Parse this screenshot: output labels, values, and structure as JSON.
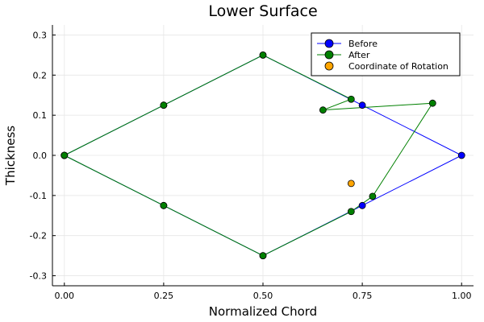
{
  "chart_data": {
    "type": "line",
    "title": "Lower Surface",
    "xlabel": "Normalized Chord",
    "ylabel": "Thickness",
    "xlim": [
      -0.03,
      1.03
    ],
    "ylim": [
      -0.325,
      0.325
    ],
    "xticks": [
      0.0,
      0.25,
      0.5,
      0.75,
      1.0
    ],
    "xtick_labels": [
      "0.00",
      "0.25",
      "0.50",
      "0.75",
      "1.00"
    ],
    "yticks": [
      -0.3,
      -0.2,
      -0.1,
      0.0,
      0.1,
      0.2,
      0.3
    ],
    "ytick_labels": [
      "-0.3",
      "-0.2",
      "-0.1",
      "0.0",
      "0.1",
      "0.2",
      "0.3"
    ],
    "grid": true,
    "legend_position": "top-right",
    "series": [
      {
        "name": "Before",
        "color": "#0000ff",
        "kind": "line+markers",
        "x": [
          0.0,
          0.25,
          0.5,
          0.75,
          1.0,
          0.75,
          0.5,
          0.25,
          0.0
        ],
        "y": [
          0.0,
          0.125,
          0.25,
          0.125,
          0.0,
          -0.125,
          -0.25,
          -0.125,
          0.0
        ]
      },
      {
        "name": "After",
        "color": "#008000",
        "kind": "line+markers",
        "x": [
          0.0,
          0.25,
          0.5,
          0.722,
          0.651,
          0.927,
          0.776,
          0.722,
          0.5,
          0.25,
          0.0
        ],
        "y": [
          0.0,
          0.125,
          0.25,
          0.14,
          0.113,
          0.13,
          -0.102,
          -0.14,
          -0.25,
          -0.125,
          0.0
        ]
      },
      {
        "name": "Coordinate of Rotation",
        "color": "#ffa500",
        "kind": "markers",
        "x": [
          0.722
        ],
        "y": [
          -0.07
        ]
      }
    ]
  }
}
